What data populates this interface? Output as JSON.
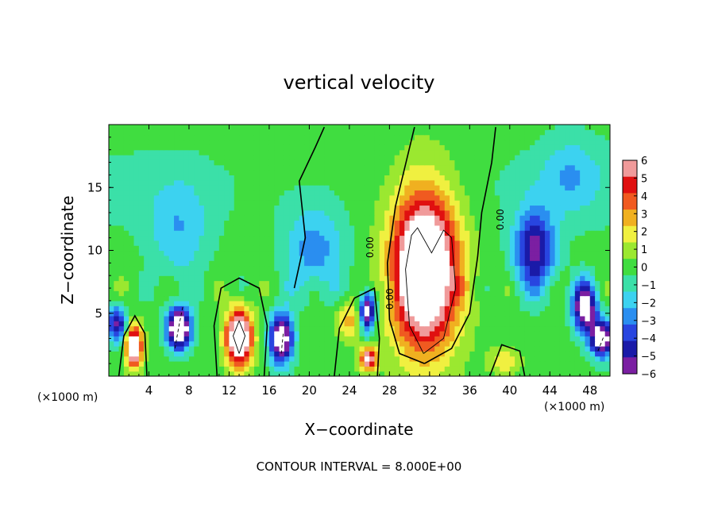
{
  "chart_data": {
    "type": "heatmap",
    "title": "vertical velocity",
    "xlabel": "X−coordinate",
    "ylabel": "Z−coordinate",
    "x_unit_left": "(×1000 m)",
    "x_unit_right": "(×1000 m)",
    "xlim": [
      0,
      50
    ],
    "ylim": [
      0,
      20
    ],
    "xticks": [
      4,
      8,
      12,
      16,
      20,
      24,
      28,
      32,
      36,
      40,
      44,
      48
    ],
    "yticks": [
      5,
      10,
      15
    ],
    "colorbar": {
      "ticks": [
        "6",
        "5",
        "4",
        "3",
        "2",
        "1",
        "0",
        "−1",
        "−2",
        "−3",
        "−4",
        "−5",
        "−6"
      ],
      "range": [
        -6,
        6
      ],
      "colors": [
        "#7b1fa2",
        "#1a1aa8",
        "#2845e0",
        "#2a8ef0",
        "#3cd2f0",
        "#3be0a8",
        "#40dd40",
        "#9be830",
        "#f0f040",
        "#f0b020",
        "#f05a20",
        "#e01010",
        "#f09a9a"
      ]
    },
    "contour_labels": [
      "0.00",
      "0.00",
      "0.00"
    ],
    "footer": "CONTOUR INTERVAL = 8.000E+00",
    "features": [
      {
        "x": 31.5,
        "z": 8.5,
        "sx": 3.3,
        "sz": 6.2,
        "amp": 11
      },
      {
        "x": 13.0,
        "z": 3.1,
        "sx": 1.3,
        "sz": 2.2,
        "amp": 10
      },
      {
        "x": 2.5,
        "z": 2.4,
        "sx": 0.8,
        "sz": 1.6,
        "amp": 9
      },
      {
        "x": 25.9,
        "z": 1.4,
        "sx": 0.9,
        "sz": 0.9,
        "amp": 7
      },
      {
        "x": 24.0,
        "z": 4.5,
        "sx": 1.2,
        "sz": 1.5,
        "amp": 3
      },
      {
        "x": 39.5,
        "z": 1.2,
        "sx": 1.5,
        "sz": 1.0,
        "amp": 2.5
      },
      {
        "x": 7.0,
        "z": 3.8,
        "sx": 1.2,
        "sz": 1.6,
        "amp": -10
      },
      {
        "x": 17.2,
        "z": 3.0,
        "sx": 1.2,
        "sz": 2.0,
        "amp": -8
      },
      {
        "x": 25.8,
        "z": 5.2,
        "sx": 0.8,
        "sz": 1.6,
        "amp": -8
      },
      {
        "x": 42.5,
        "z": 10.0,
        "sx": 2.0,
        "sz": 3.2,
        "amp": -6
      },
      {
        "x": 47.5,
        "z": 5.5,
        "sx": 1.2,
        "sz": 2.0,
        "amp": -8
      },
      {
        "x": 49.2,
        "z": 3.0,
        "sx": 1.2,
        "sz": 1.5,
        "amp": -8
      },
      {
        "x": 0.8,
        "z": 4.2,
        "sx": 1.0,
        "sz": 1.4,
        "amp": -6
      },
      {
        "x": 20.5,
        "z": 10.0,
        "sx": 3.0,
        "sz": 3.5,
        "amp": -3
      },
      {
        "x": 7.0,
        "z": 11.5,
        "sx": 3.0,
        "sz": 4.0,
        "amp": -2.2
      },
      {
        "x": 46.0,
        "z": 16.0,
        "sx": 3.0,
        "sz": 3.0,
        "amp": -2
      }
    ],
    "zero_contour": [
      [
        [
          31.5,
          1.0
        ],
        [
          29.0,
          1.8
        ],
        [
          28.0,
          4.5
        ],
        [
          27.8,
          9.0
        ],
        [
          28.6,
          13.5
        ],
        [
          29.5,
          16.5
        ],
        [
          30.5,
          19.8
        ]
      ],
      [
        [
          31.5,
          1.0
        ],
        [
          34.2,
          2.2
        ],
        [
          36.0,
          5.0
        ],
        [
          36.8,
          9.5
        ],
        [
          37.2,
          13.0
        ],
        [
          38.2,
          17.0
        ],
        [
          38.6,
          19.8
        ]
      ],
      [
        [
          10.8,
          0.0
        ],
        [
          10.5,
          4.0
        ],
        [
          11.2,
          7.0
        ],
        [
          13.0,
          7.8
        ],
        [
          15.0,
          7.0
        ],
        [
          15.8,
          4.0
        ],
        [
          15.5,
          0.0
        ]
      ],
      [
        [
          1.0,
          0.0
        ],
        [
          1.5,
          3.2
        ],
        [
          2.6,
          4.8
        ],
        [
          3.6,
          3.4
        ],
        [
          3.8,
          0.0
        ]
      ],
      [
        [
          18.5,
          7.0
        ],
        [
          19.6,
          11.0
        ],
        [
          19.0,
          15.5
        ],
        [
          20.6,
          18.2
        ],
        [
          21.5,
          19.8
        ]
      ],
      [
        [
          22.5,
          0.0
        ],
        [
          23.0,
          3.8
        ],
        [
          24.5,
          6.2
        ],
        [
          26.5,
          7.0
        ],
        [
          27.0,
          3.0
        ],
        [
          26.8,
          0.0
        ]
      ],
      [
        [
          38.0,
          0.0
        ],
        [
          39.2,
          2.5
        ],
        [
          41.0,
          2.0
        ],
        [
          41.5,
          0.0
        ]
      ]
    ],
    "inner_contours": [
      [
        [
          31.4,
          1.8
        ],
        [
          30.0,
          4.0
        ],
        [
          29.6,
          8.5
        ],
        [
          30.2,
          11.2
        ],
        [
          30.8,
          11.8
        ],
        [
          32.2,
          9.8
        ],
        [
          33.4,
          11.6
        ],
        [
          34.2,
          11.0
        ],
        [
          34.6,
          7.0
        ],
        [
          33.4,
          3.0
        ],
        [
          31.4,
          1.8
        ]
      ],
      [
        [
          13.0,
          1.8
        ],
        [
          12.4,
          3.2
        ],
        [
          13.0,
          4.4
        ],
        [
          13.6,
          3.2
        ],
        [
          13.0,
          1.8
        ]
      ]
    ],
    "dashed_contours": [
      [
        [
          6.6,
          2.2
        ],
        [
          7.0,
          4.0
        ],
        [
          7.4,
          5.6
        ]
      ],
      [
        [
          17.2,
          1.8
        ],
        [
          17.4,
          3.4
        ]
      ],
      [
        [
          48.8,
          2.0
        ],
        [
          49.4,
          3.2
        ]
      ]
    ]
  }
}
